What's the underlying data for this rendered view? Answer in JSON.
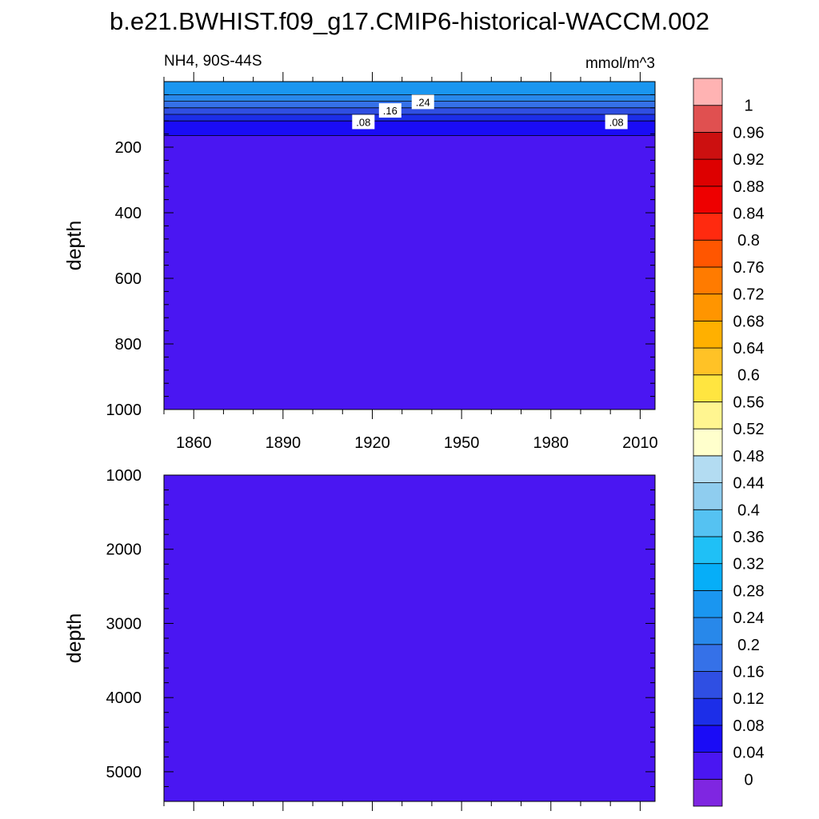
{
  "chart_data": {
    "title": "b.e21.BWHIST.f09_g17.CMIP6-historical-WACCM.002",
    "left_string": "NH4, 90S-44S",
    "right_string": "mmol/m^3",
    "type": "heatmap",
    "x_tick_labels": [
      "1860",
      "1890",
      "1920",
      "1950",
      "1980",
      "2010"
    ],
    "x_ticks": [
      1860,
      1890,
      1920,
      1950,
      1980,
      2010
    ],
    "xlim": [
      1850,
      2015
    ],
    "panels": [
      {
        "name": "upper",
        "ylabel": "depth",
        "ylim": [
          0,
          1000
        ],
        "y_ticks": [
          200,
          400,
          600,
          800,
          1000
        ],
        "y_tick_labels": [
          "200",
          "400",
          "600",
          "800",
          "1000"
        ],
        "layers": [
          {
            "depth_top": 0,
            "depth_bottom": 40,
            "value": 0.26
          },
          {
            "depth_top": 40,
            "depth_bottom": 60,
            "value": 0.22
          },
          {
            "depth_top": 60,
            "depth_bottom": 80,
            "value": 0.18
          },
          {
            "depth_top": 80,
            "depth_bottom": 100,
            "value": 0.14
          },
          {
            "depth_top": 100,
            "depth_bottom": 120,
            "value": 0.1
          },
          {
            "depth_top": 120,
            "depth_bottom": 165,
            "value": 0.06
          },
          {
            "depth_top": 165,
            "depth_bottom": 1000,
            "value": 0.02
          }
        ],
        "contour_labels": [
          {
            "text": ".24",
            "year": 1937,
            "depth": 62
          },
          {
            "text": ".16",
            "year": 1926,
            "depth": 88
          },
          {
            "text": ".08",
            "year": 1917,
            "depth": 123
          },
          {
            "text": ".08",
            "year": 2002,
            "depth": 123
          }
        ]
      },
      {
        "name": "lower",
        "ylabel": "depth",
        "ylim": [
          1000,
          5400
        ],
        "y_ticks": [
          1000,
          2000,
          3000,
          4000,
          5000
        ],
        "y_tick_labels": [
          "1000",
          "2000",
          "3000",
          "4000",
          "5000"
        ],
        "layers": [
          {
            "depth_top": 1000,
            "depth_bottom": 5400,
            "value": 0.02
          }
        ]
      }
    ],
    "colorbar": {
      "labels": [
        "0",
        "0.04",
        "0.08",
        "0.12",
        "0.16",
        "0.2",
        "0.24",
        "0.28",
        "0.32",
        "0.36",
        "0.4",
        "0.44",
        "0.48",
        "0.52",
        "0.56",
        "0.6",
        "0.64",
        "0.68",
        "0.72",
        "0.76",
        "0.8",
        "0.84",
        "0.88",
        "0.92",
        "0.96",
        "1"
      ],
      "colors": [
        "#7f26e1",
        "#4a16f2",
        "#1a0cf6",
        "#1c2ee8",
        "#2f4fe3",
        "#3571e8",
        "#2888ea",
        "#1a96f0",
        "#06aef8",
        "#1fc0f6",
        "#55c2f2",
        "#8fcdef",
        "#b3dcf2",
        "#ffffcc",
        "#fff590",
        "#ffe540",
        "#ffc226",
        "#ffb000",
        "#ff9500",
        "#ff7b00",
        "#ff5600",
        "#ff2a0f",
        "#ee0000",
        "#dd0000",
        "#cc1010",
        "#e05050",
        "#ffb3b3"
      ]
    }
  }
}
